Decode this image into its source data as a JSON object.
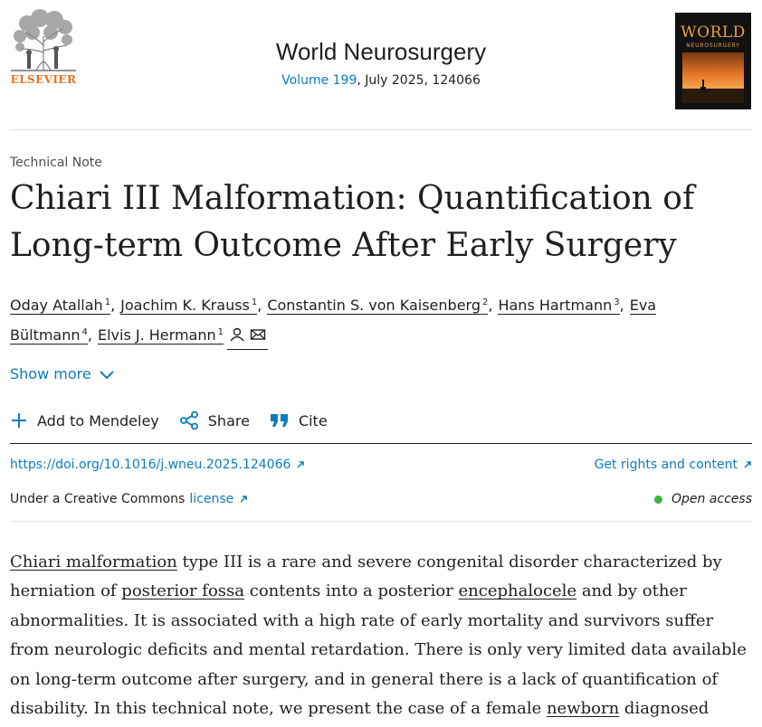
{
  "header": {
    "publisher": "ELSEVIER",
    "journal": "World Neurosurgery",
    "volume_link": "Volume 199",
    "issue_rest": ", July 2025, 124066",
    "cover_title": "WORLD",
    "cover_subtitle": "NEUROSURGERY"
  },
  "article": {
    "type": "Technical Note",
    "title": "Chiari III Malformation: Quantification of Long-term Outcome After Early Surgery",
    "authors": [
      {
        "name": "Oday Atallah",
        "sup": "1"
      },
      {
        "name": "Joachim K. Krauss",
        "sup": "1"
      },
      {
        "name": "Constantin S. von Kaisenberg",
        "sup": "2"
      },
      {
        "name": "Hans Hartmann",
        "sup": "3"
      },
      {
        "name": "Eva Bültmann",
        "sup": "4"
      },
      {
        "name": "Elvis J. Hermann",
        "sup": "1"
      }
    ],
    "show_more": "Show more"
  },
  "toolbar": {
    "mendeley": "Add to Mendeley",
    "share": "Share",
    "cite": "Cite"
  },
  "links": {
    "doi": "https://doi.org/10.1016/j.wneu.2025.124066",
    "rights": "Get rights and content",
    "license_prefix": "Under a Creative Commons",
    "license": "license",
    "open_access": "Open access"
  },
  "abstract": {
    "segments": [
      {
        "kw": "Chiari malformation"
      },
      {
        "t": " type III is a rare and severe congenital disorder characterized by herniation of "
      },
      {
        "kw": "posterior fossa"
      },
      {
        "t": " contents into a posterior "
      },
      {
        "kw": "encephalocele"
      },
      {
        "t": " and by other abnormalities. It is associated with a high rate of early mortality and survivors suffer from neurologic deficits and mental retardation. There is only very limited data available on long-term outcome after surgery, and in general there is a lack of quantification of disability. In this technical note, we present the case of a female "
      },
      {
        "kw": "newborn"
      },
      {
        "t": " diagnosed"
      }
    ]
  },
  "colors": {
    "link_blue": "#0c7dbb",
    "elsevier_orange": "#e9711c",
    "open_access_green": "#3bb23b",
    "text": "#1f1f1f"
  },
  "icons": [
    "elsevier-tree-logo",
    "person-icon",
    "envelope-icon",
    "chevron-down-icon",
    "plus-icon",
    "share-icon",
    "quote-icon",
    "external-link-icon"
  ]
}
